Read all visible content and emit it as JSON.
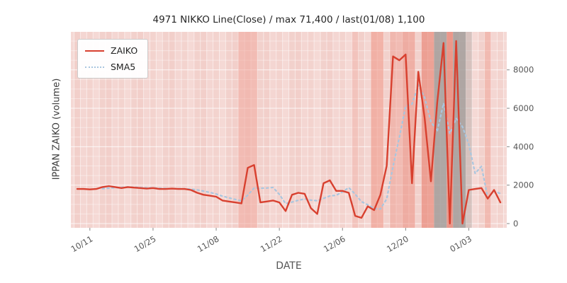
{
  "chart_data": {
    "type": "line",
    "title": "4971 NIKKO Line(Close) / max 71,400 / last(01/08) 1,100",
    "xlabel": "DATE",
    "ylabel": "IPPAN ZAIKO (volume)",
    "y_axis_side": "right",
    "y_ticks": [
      0,
      2000,
      4000,
      6000,
      8000
    ],
    "ylim_est": [
      -230,
      9980
    ],
    "grid": "fine white grid lines on pink panel, one vertical line per day",
    "legend_position": "upper-left",
    "x_ticks": [
      {
        "index": 2,
        "label": "10/11"
      },
      {
        "index": 12,
        "label": "10/25"
      },
      {
        "index": 22,
        "label": "11/08"
      },
      {
        "index": 32,
        "label": "11/22"
      },
      {
        "index": 42,
        "label": "12/06"
      },
      {
        "index": 52,
        "label": "12/20"
      },
      {
        "index": 62,
        "label": "01/03"
      }
    ],
    "series": [
      {
        "name": "ZAIKO",
        "style": "solid",
        "color": "#d8402f",
        "values": [
          1800,
          1800,
          1780,
          1800,
          1900,
          1950,
          1900,
          1850,
          1900,
          1870,
          1850,
          1820,
          1850,
          1800,
          1800,
          1820,
          1800,
          1800,
          1750,
          1600,
          1500,
          1450,
          1400,
          1200,
          1150,
          1100,
          1050,
          2900,
          3050,
          1100,
          1150,
          1200,
          1100,
          650,
          1500,
          1600,
          1550,
          800,
          500,
          2100,
          2250,
          1700,
          1700,
          1600,
          400,
          300,
          900,
          700,
          1500,
          3000,
          8700,
          8500,
          8800,
          2100,
          7900,
          5500,
          2200,
          6300,
          9400,
          0,
          9500,
          0,
          1750,
          1800,
          1850,
          1300,
          1750,
          1100
        ]
      },
      {
        "name": "SMA5",
        "style": "dotted",
        "color": "#a9c6df",
        "window": 5,
        "derived_from": "rolling mean (window 5) of ZAIKO"
      }
    ],
    "background_bands": [
      {
        "from": 26,
        "to": 28,
        "color": "#f0a093",
        "opacity": 0.5
      },
      {
        "from": 44,
        "to": 44,
        "color": "#f3b0a5",
        "opacity": 0.4
      },
      {
        "from": 47,
        "to": 48,
        "color": "#ee9484",
        "opacity": 0.55
      },
      {
        "from": 50,
        "to": 51,
        "color": "#ee9484",
        "opacity": 0.4
      },
      {
        "from": 52,
        "to": 53,
        "color": "#ea8575",
        "opacity": 0.5
      },
      {
        "from": 55,
        "to": 56,
        "color": "#e87f6e",
        "opacity": 0.6
      },
      {
        "from": 57,
        "to": 58,
        "color": "#9e9a97",
        "opacity": 0.8
      },
      {
        "from": 59,
        "to": 59,
        "color": "#e87f6e",
        "opacity": 0.7
      },
      {
        "from": 60,
        "to": 61,
        "color": "#9e9a97",
        "opacity": 0.8
      },
      {
        "from": 62,
        "to": 62,
        "color": "#b3aeab",
        "opacity": 0.45
      },
      {
        "from": 65,
        "to": 65,
        "color": "#f0a093",
        "opacity": 0.45
      }
    ],
    "colors": {
      "figure_bg": "#ffffff",
      "plot_bg": "#f5d9d5",
      "stripe": "#e5aaa2",
      "tick_text": "#555555"
    }
  }
}
